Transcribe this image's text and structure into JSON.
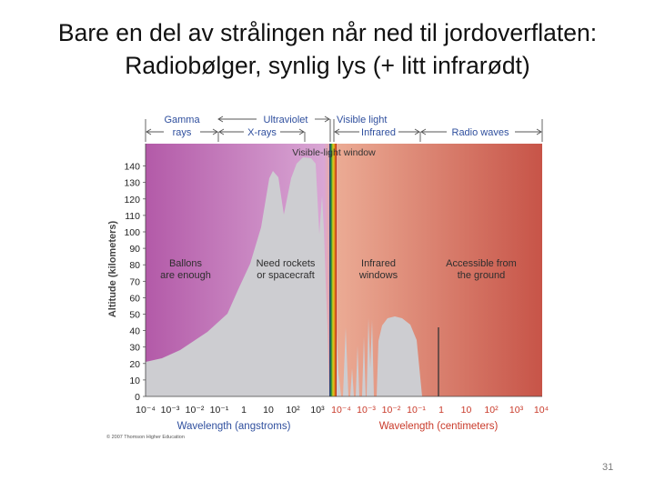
{
  "slide": {
    "title_line1": "Bare en del av strålingen når ned til jordoverflaten:",
    "title_line2": "Radiobølger, synlig lys (+ litt infrarødt)",
    "page_number": "31"
  },
  "figure": {
    "band_labels": {
      "gamma_line1": "Gamma",
      "gamma_line2": "rays",
      "xrays": "X-rays",
      "ultraviolet": "Ultraviolet",
      "visible": "Visible light",
      "infrared": "Infrared",
      "radio": "Radio waves"
    },
    "window_label": "Visible-light window",
    "region_labels": {
      "balloons_line1": "Ballons",
      "balloons_line2": "are enough",
      "rockets_line1": "Need rockets",
      "rockets_line2": "or spacecraft",
      "infrared_line1": "Infrared",
      "infrared_line2": "windows",
      "ground_line1": "Accessible from",
      "ground_line2": "the ground"
    },
    "y_axis_label": "Altitude (kilometers)",
    "y_ticks": [
      "0",
      "10",
      "20",
      "30",
      "40",
      "50",
      "60",
      "70",
      "80",
      "90",
      "100",
      "110",
      "120",
      "130",
      "140"
    ],
    "x_ticks_angstrom": [
      "10⁻⁴",
      "10⁻³",
      "10⁻²",
      "10⁻¹",
      "1",
      "10",
      "10²",
      "10³"
    ],
    "x_ticks_cm": [
      "10⁻⁴",
      "10⁻³",
      "10⁻²",
      "10⁻¹",
      "1",
      "10",
      "10²",
      "10³",
      "10⁴"
    ],
    "x_label_angstrom": "Wavelength (angstroms)",
    "x_label_cm": "Wavelength (centimeters)",
    "copyright": "© 2007 Thomson Higher Education",
    "colors": {
      "left_band": "#b35aa8",
      "uv_band": "#d9a6d4",
      "ir_band": "#ecad96",
      "radio_band": "#c75448",
      "absorption_fill": "#cdcdd1",
      "label_blue": "#2f4f9e",
      "label_red": "#c93a2a"
    }
  }
}
